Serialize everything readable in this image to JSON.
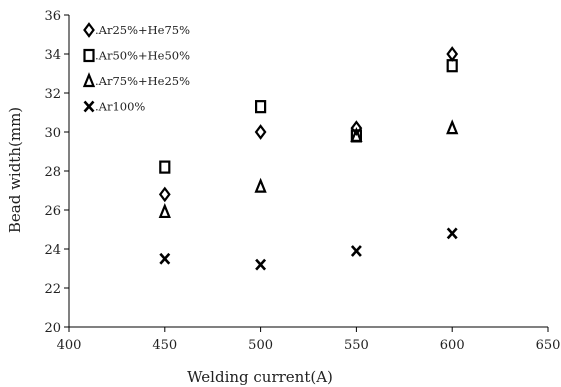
{
  "chart_data": {
    "type": "scatter",
    "xlabel": "Welding current(A)",
    "ylabel": "Bead width(mm)",
    "xlim": [
      400,
      650
    ],
    "ylim": [
      20,
      36
    ],
    "xticks": [
      400,
      450,
      500,
      550,
      600,
      650
    ],
    "yticks": [
      20,
      22,
      24,
      26,
      28,
      30,
      32,
      34,
      36
    ],
    "grid": false,
    "legend_position": "top-left",
    "series": [
      {
        "name": ".Ar25%+He75%",
        "marker": "diamond",
        "points": [
          [
            450,
            26.8
          ],
          [
            500,
            30.0
          ],
          [
            550,
            30.2
          ],
          [
            600,
            34.0
          ]
        ]
      },
      {
        "name": ".Ar50%+He50%",
        "marker": "square",
        "points": [
          [
            450,
            28.2
          ],
          [
            500,
            31.3
          ],
          [
            550,
            29.8
          ],
          [
            600,
            33.4
          ]
        ]
      },
      {
        "name": ".Ar75%+He25%",
        "marker": "triangle",
        "points": [
          [
            450,
            25.9
          ],
          [
            500,
            27.2
          ],
          [
            550,
            29.8
          ],
          [
            600,
            30.2
          ]
        ]
      },
      {
        "name": ".Ar100%",
        "marker": "x",
        "points": [
          [
            450,
            23.5
          ],
          [
            500,
            23.2
          ],
          [
            550,
            23.9
          ],
          [
            600,
            24.8
          ]
        ]
      }
    ]
  }
}
